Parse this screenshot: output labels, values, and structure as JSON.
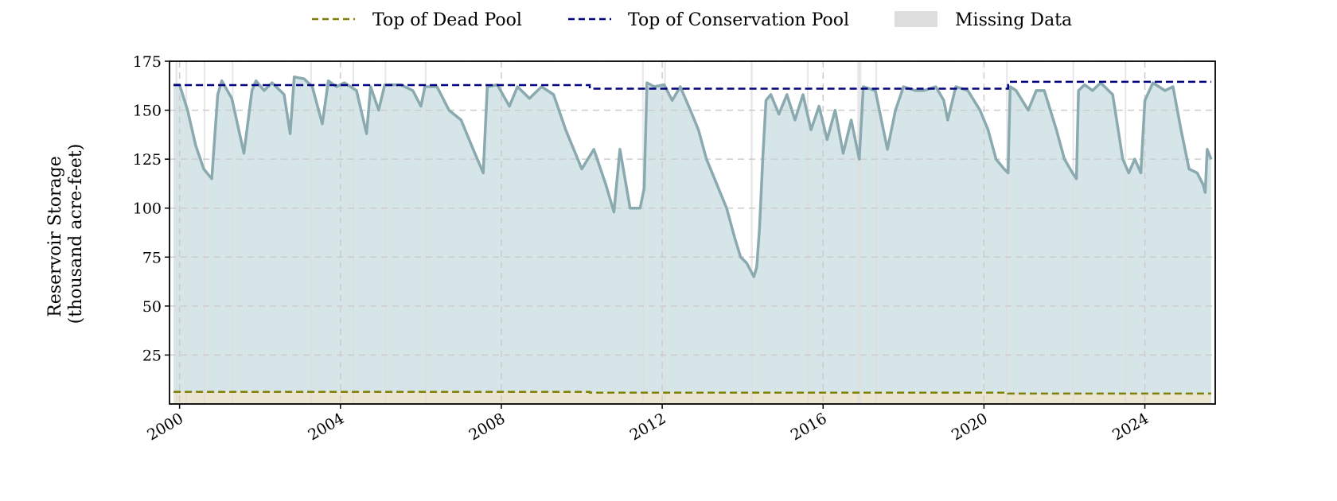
{
  "chart_data": {
    "type": "area",
    "title": "",
    "xlabel": "",
    "ylabel": [
      "Reservoir Storage",
      "(thousand acre-feet)"
    ],
    "xlim": [
      1999.75,
      2025.75
    ],
    "ylim": [
      0,
      175
    ],
    "x_ticks": [
      2000,
      2004,
      2008,
      2012,
      2016,
      2020,
      2024
    ],
    "x_tick_labels": [
      "2000",
      "2004",
      "2008",
      "2012",
      "2016",
      "2020",
      "2024"
    ],
    "y_ticks": [
      25,
      50,
      75,
      100,
      125,
      150,
      175
    ],
    "y_tick_labels": [
      "25",
      "50",
      "75",
      "100",
      "125",
      "150",
      "175"
    ],
    "grid": true,
    "legend": {
      "placement": "top-center",
      "entries": [
        "Top of Dead Pool",
        "Top of Conservation Pool",
        "Missing Data"
      ]
    },
    "colors": {
      "storage_line": "#8aaab0",
      "storage_fill": "#d6e6e8",
      "dead_pool": "#808000",
      "dead_pool_fill": "#ebe5d2",
      "conservation_pool": "#000080",
      "missing_data": "#dddddd",
      "grid": "#cccccc"
    },
    "series": [
      {
        "type": "line",
        "points": [
          [
            1999.85,
            163
          ],
          [
            2000.0,
            163
          ],
          [
            2000.2,
            150
          ],
          [
            2000.4,
            132
          ],
          [
            2000.6,
            120
          ],
          [
            2000.8,
            115
          ],
          [
            2000.95,
            158
          ],
          [
            2001.05,
            165
          ],
          [
            2001.3,
            156
          ],
          [
            2001.6,
            128
          ],
          [
            2001.8,
            160
          ],
          [
            2001.9,
            165
          ],
          [
            2002.1,
            160
          ],
          [
            2002.3,
            164
          ],
          [
            2002.6,
            158
          ],
          [
            2002.75,
            138
          ],
          [
            2002.85,
            167
          ],
          [
            2003.1,
            166
          ],
          [
            2003.3,
            162
          ],
          [
            2003.55,
            143
          ],
          [
            2003.7,
            165
          ],
          [
            2003.9,
            162
          ],
          [
            2004.1,
            164
          ],
          [
            2004.4,
            160
          ],
          [
            2004.65,
            138
          ],
          [
            2004.75,
            162
          ],
          [
            2004.95,
            150
          ],
          [
            2005.1,
            163
          ],
          [
            2005.5,
            163
          ],
          [
            2005.8,
            160
          ],
          [
            2006.0,
            152
          ],
          [
            2006.1,
            162
          ],
          [
            2006.4,
            162
          ],
          [
            2006.7,
            150
          ],
          [
            2007.0,
            145
          ],
          [
            2007.3,
            130
          ],
          [
            2007.55,
            118
          ],
          [
            2007.65,
            162
          ],
          [
            2007.9,
            163
          ],
          [
            2008.2,
            152
          ],
          [
            2008.4,
            162
          ],
          [
            2008.7,
            156
          ],
          [
            2009.0,
            162
          ],
          [
            2009.3,
            158
          ],
          [
            2009.6,
            140
          ],
          [
            2009.9,
            125
          ],
          [
            2010.0,
            120
          ],
          [
            2010.3,
            130
          ],
          [
            2010.6,
            112
          ],
          [
            2010.8,
            98
          ],
          [
            2010.95,
            130
          ],
          [
            2011.2,
            100
          ],
          [
            2011.45,
            100
          ],
          [
            2011.55,
            110
          ],
          [
            2011.62,
            164
          ],
          [
            2011.8,
            162
          ],
          [
            2012.05,
            163
          ],
          [
            2012.25,
            155
          ],
          [
            2012.45,
            162
          ],
          [
            2012.7,
            150
          ],
          [
            2012.9,
            140
          ],
          [
            2013.1,
            125
          ],
          [
            2013.4,
            110
          ],
          [
            2013.6,
            100
          ],
          [
            2013.8,
            85
          ],
          [
            2013.95,
            75
          ],
          [
            2014.1,
            72
          ],
          [
            2014.2,
            68
          ],
          [
            2014.28,
            65
          ],
          [
            2014.35,
            70
          ],
          [
            2014.42,
            90
          ],
          [
            2014.5,
            125
          ],
          [
            2014.58,
            155
          ],
          [
            2014.7,
            158
          ],
          [
            2014.9,
            148
          ],
          [
            2015.1,
            158
          ],
          [
            2015.3,
            145
          ],
          [
            2015.5,
            158
          ],
          [
            2015.7,
            140
          ],
          [
            2015.9,
            152
          ],
          [
            2016.1,
            135
          ],
          [
            2016.3,
            150
          ],
          [
            2016.5,
            128
          ],
          [
            2016.7,
            145
          ],
          [
            2016.9,
            125
          ],
          [
            2017.0,
            162
          ],
          [
            2017.3,
            160
          ],
          [
            2017.6,
            130
          ],
          [
            2017.8,
            150
          ],
          [
            2018.0,
            162
          ],
          [
            2018.3,
            160
          ],
          [
            2018.5,
            160
          ],
          [
            2018.8,
            162
          ],
          [
            2019.0,
            155
          ],
          [
            2019.1,
            145
          ],
          [
            2019.3,
            162
          ],
          [
            2019.6,
            160
          ],
          [
            2019.9,
            150
          ],
          [
            2020.1,
            140
          ],
          [
            2020.3,
            125
          ],
          [
            2020.5,
            120
          ],
          [
            2020.6,
            118
          ],
          [
            2020.65,
            162
          ],
          [
            2020.8,
            160
          ],
          [
            2021.1,
            150
          ],
          [
            2021.3,
            160
          ],
          [
            2021.5,
            160
          ],
          [
            2021.8,
            140
          ],
          [
            2022.0,
            125
          ],
          [
            2022.2,
            118
          ],
          [
            2022.3,
            115
          ],
          [
            2022.35,
            160
          ],
          [
            2022.5,
            163
          ],
          [
            2022.7,
            160
          ],
          [
            2022.9,
            164
          ],
          [
            2023.2,
            158
          ],
          [
            2023.45,
            125
          ],
          [
            2023.6,
            118
          ],
          [
            2023.75,
            125
          ],
          [
            2023.9,
            118
          ],
          [
            2024.0,
            155
          ],
          [
            2024.2,
            164
          ],
          [
            2024.5,
            160
          ],
          [
            2024.7,
            162
          ],
          [
            2024.9,
            140
          ],
          [
            2025.1,
            120
          ],
          [
            2025.3,
            118
          ],
          [
            2025.45,
            112
          ],
          [
            2025.5,
            108
          ],
          [
            2025.55,
            130
          ],
          [
            2025.65,
            125
          ]
        ]
      },
      {
        "name": "Top of Dead Pool",
        "type": "step-dashed",
        "points": [
          [
            1999.85,
            6.2
          ],
          [
            2010.2,
            6.2
          ],
          [
            2010.2,
            5.8
          ],
          [
            2020.6,
            5.8
          ],
          [
            2020.6,
            5.3
          ],
          [
            2025.65,
            5.3
          ]
        ]
      },
      {
        "name": "Top of Conservation Pool",
        "type": "step-dashed",
        "points": [
          [
            1999.85,
            162.8
          ],
          [
            2010.2,
            162.8
          ],
          [
            2010.2,
            161.0
          ],
          [
            2020.6,
            161.0
          ],
          [
            2020.6,
            164.5
          ],
          [
            2025.65,
            164.5
          ]
        ]
      }
    ],
    "missing_data_ranges": [
      [
        1999.9,
        1999.95
      ],
      [
        2000.15,
        2000.18
      ],
      [
        2000.6,
        2000.62
      ],
      [
        2001.3,
        2001.32
      ],
      [
        2003.25,
        2003.27
      ],
      [
        2004.3,
        2004.32
      ],
      [
        2005.1,
        2005.12
      ],
      [
        2006.1,
        2006.12
      ],
      [
        2011.5,
        2011.52
      ],
      [
        2012.05,
        2012.07
      ],
      [
        2014.2,
        2014.25
      ],
      [
        2015.6,
        2015.63
      ],
      [
        2016.85,
        2016.95
      ],
      [
        2017.3,
        2017.32
      ],
      [
        2020.55,
        2020.58
      ],
      [
        2022.2,
        2022.22
      ],
      [
        2023.5,
        2023.52
      ]
    ]
  }
}
